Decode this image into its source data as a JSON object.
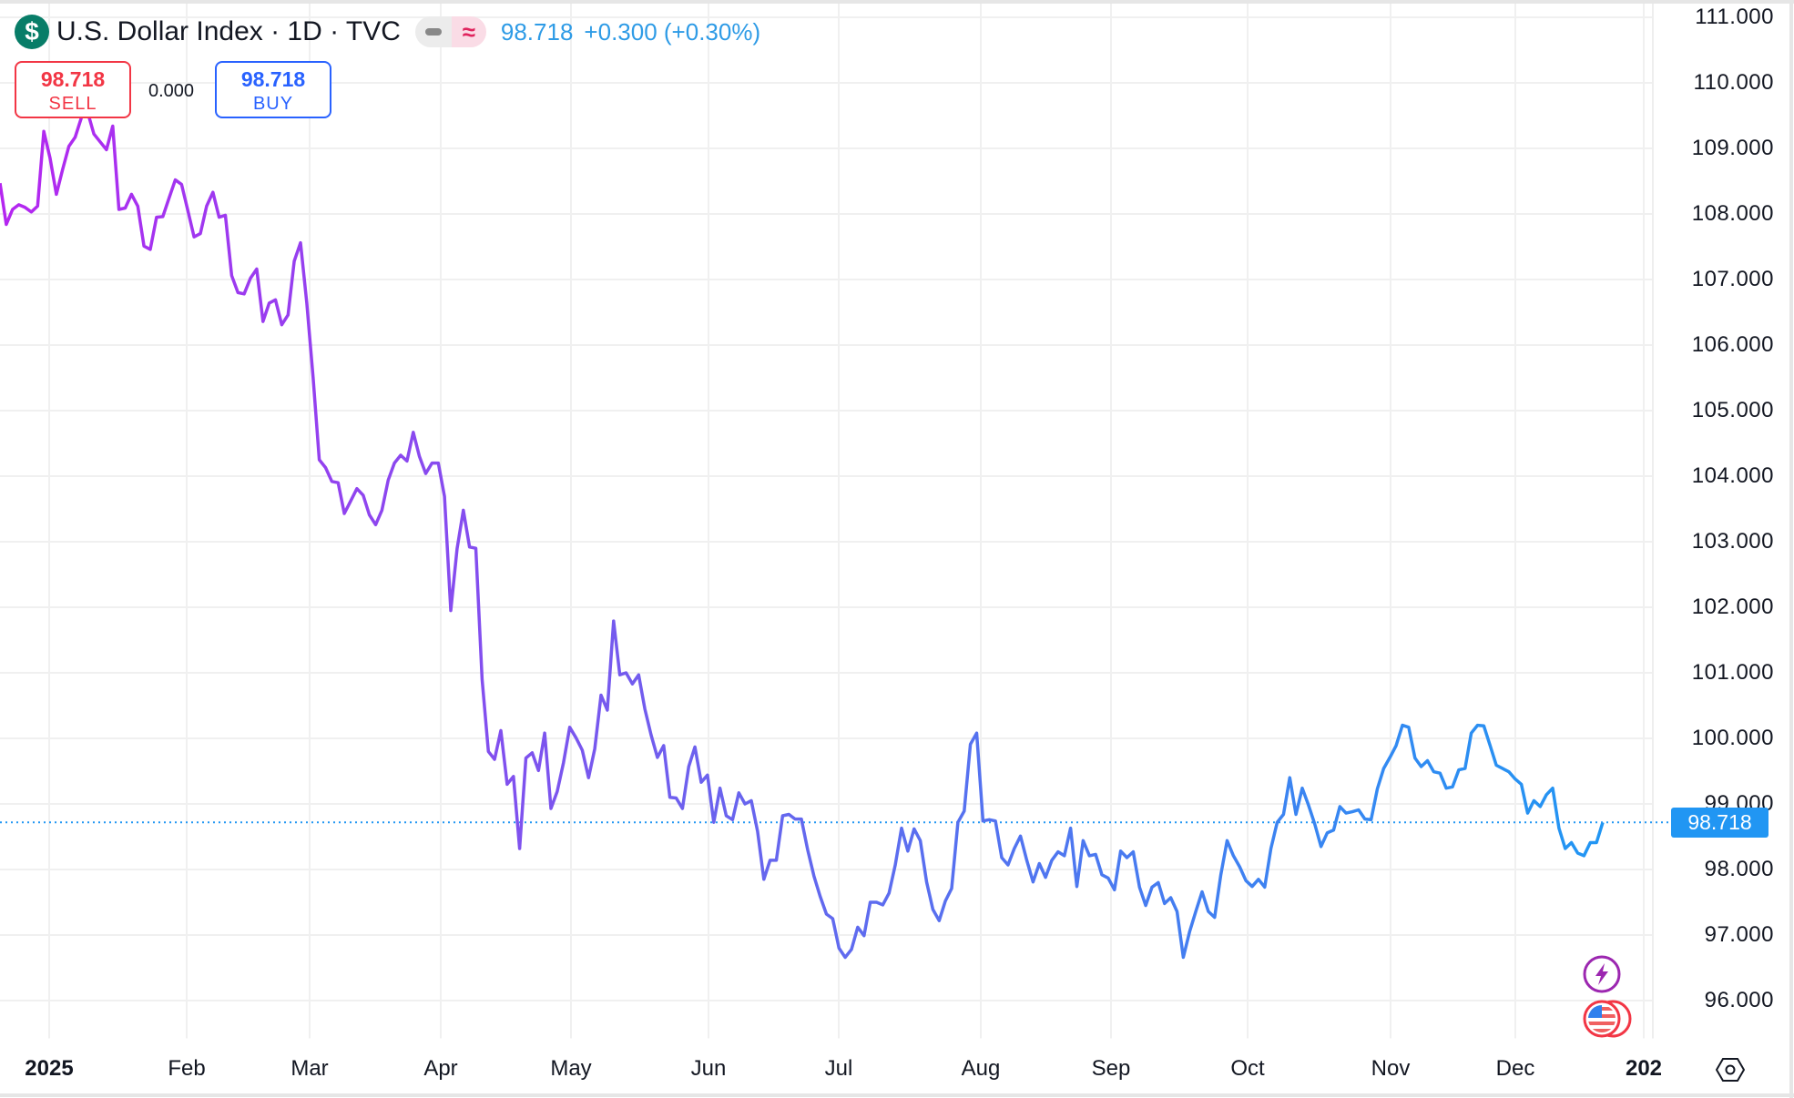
{
  "header": {
    "symbol_icon": "dollar-icon",
    "title": "U.S. Dollar Index · 1D · TVC",
    "price": "98.718",
    "change": "+0.300 (+0.30%)"
  },
  "trade": {
    "sell_price": "98.718",
    "sell_label": "SELL",
    "spread": "0.000",
    "buy_price": "98.718",
    "buy_label": "BUY"
  },
  "price_tag": "98.718",
  "footer": {
    "settings_icon": "settings-icon",
    "events_icons": [
      "lightning-icon",
      "us-flag-icon"
    ]
  },
  "colors": {
    "line_start": "#b526f0",
    "line_mid": "#6a63ee",
    "line_end": "#2196f3",
    "up": "#2962ff",
    "down": "#f23645"
  },
  "chart_data": {
    "type": "line",
    "title": "U.S. Dollar Index · 1D · TVC",
    "xlabel": "",
    "ylabel": "",
    "x_unit": "trading day index (2025)",
    "x_ticks": [
      "2025",
      "Feb",
      "Mar",
      "Apr",
      "May",
      "Jun",
      "Jul",
      "Aug",
      "Sep",
      "Oct",
      "Nov",
      "Dec",
      "202"
    ],
    "y_ticks": [
      "111.000",
      "110.000",
      "109.000",
      "108.000",
      "107.000",
      "106.000",
      "105.000",
      "104.000",
      "103.000",
      "102.000",
      "101.000",
      "100.000",
      "99.000",
      "98.000",
      "97.000",
      "96.000"
    ],
    "ylim": [
      95.6,
      111.2
    ],
    "last_value": 98.718,
    "grid": true,
    "values": [
      108.47,
      107.84,
      108.07,
      108.14,
      108.1,
      108.03,
      108.12,
      109.26,
      108.85,
      108.3,
      108.68,
      109.03,
      109.17,
      109.47,
      109.55,
      109.22,
      109.1,
      108.98,
      109.34,
      108.07,
      108.09,
      108.3,
      108.12,
      107.51,
      107.46,
      107.95,
      107.96,
      108.24,
      108.52,
      108.45,
      108.05,
      107.65,
      107.7,
      108.12,
      108.33,
      107.95,
      107.98,
      107.06,
      106.8,
      106.78,
      107.02,
      107.16,
      106.36,
      106.64,
      106.69,
      106.31,
      106.46,
      107.28,
      107.56,
      106.64,
      105.51,
      104.25,
      104.13,
      103.92,
      103.9,
      103.43,
      103.62,
      103.81,
      103.71,
      103.41,
      103.26,
      103.48,
      103.94,
      104.2,
      104.32,
      104.23,
      104.67,
      104.3,
      104.04,
      104.2,
      104.2,
      103.69,
      101.95,
      102.89,
      103.48,
      102.92,
      102.9,
      100.9,
      99.8,
      99.68,
      100.12,
      99.3,
      99.42,
      98.32,
      99.7,
      99.78,
      99.51,
      100.08,
      98.93,
      99.19,
      99.63,
      100.17,
      100.01,
      99.82,
      99.4,
      99.84,
      100.66,
      100.43,
      101.79,
      100.97,
      101.0,
      100.83,
      100.97,
      100.45,
      100.05,
      99.71,
      99.89,
      99.1,
      99.09,
      98.93,
      99.57,
      99.87,
      99.33,
      99.44,
      98.72,
      99.24,
      98.82,
      98.76,
      99.17,
      99.0,
      99.05,
      98.58,
      97.85,
      98.14,
      98.14,
      98.82,
      98.84,
      98.77,
      98.77,
      98.3,
      97.9,
      97.59,
      97.32,
      97.25,
      96.8,
      96.66,
      96.78,
      97.12,
      96.99,
      97.5,
      97.5,
      97.46,
      97.64,
      98.07,
      98.63,
      98.28,
      98.62,
      98.44,
      97.81,
      97.39,
      97.22,
      97.52,
      97.71,
      98.72,
      98.89,
      99.91,
      100.08,
      98.74,
      98.76,
      98.74,
      98.18,
      98.07,
      98.32,
      98.51,
      98.14,
      97.81,
      98.09,
      97.88,
      98.14,
      98.27,
      98.21,
      98.63,
      97.74,
      98.44,
      98.21,
      98.23,
      97.92,
      97.87,
      97.69,
      98.28,
      98.18,
      98.27,
      97.73,
      97.45,
      97.73,
      97.8,
      97.48,
      97.57,
      97.36,
      96.66,
      97.05,
      97.36,
      97.66,
      97.36,
      97.27,
      97.92,
      98.44,
      98.21,
      98.04,
      97.83,
      97.74,
      97.85,
      97.73,
      98.32,
      98.72,
      98.84,
      99.4,
      98.84,
      99.24,
      98.98,
      98.69,
      98.35,
      98.56,
      98.6,
      98.96,
      98.86,
      98.88,
      98.91,
      98.77,
      98.76,
      99.23,
      99.54,
      99.71,
      99.89,
      100.2,
      100.17,
      99.7,
      99.57,
      99.66,
      99.49,
      99.47,
      99.24,
      99.26,
      99.52,
      99.54,
      100.08,
      100.2,
      100.19,
      99.89,
      99.59,
      99.54,
      99.49,
      99.38,
      99.3,
      98.86,
      99.05,
      98.96,
      99.14,
      99.24,
      98.63,
      98.32,
      98.41,
      98.25,
      98.21,
      98.41,
      98.41,
      98.718
    ]
  }
}
